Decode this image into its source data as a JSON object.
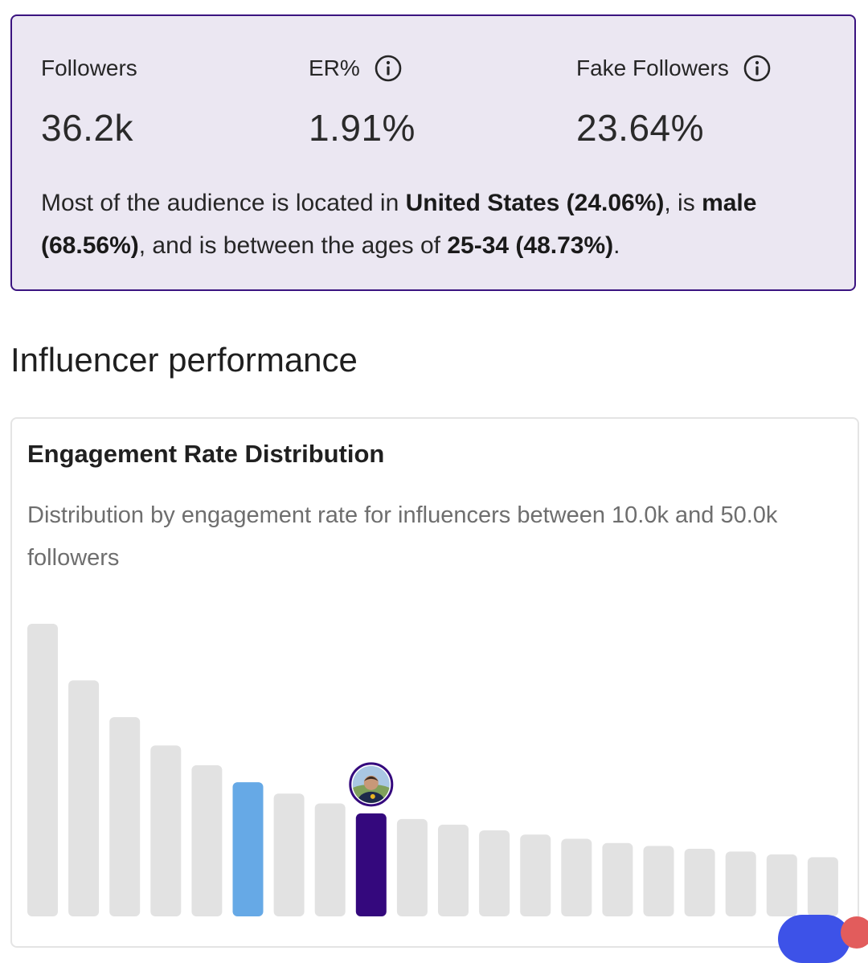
{
  "summary": {
    "followers_label": "Followers",
    "followers_value": "36.2k",
    "er_label": "ER%",
    "er_value": "1.91%",
    "fake_label": "Fake Followers",
    "fake_value": "23.64%",
    "text_1": "Most of the audience is located in ",
    "country": "United States (24.06%)",
    "text_2": ", is ",
    "gender_1": "male",
    "gender_2": "(68.56%)",
    "text_3": ", and is between the ages of ",
    "age": "25-34 (48.73%)",
    "text_4": "."
  },
  "section_title": "Influencer performance",
  "chart": {
    "title": "Engagement Rate Distribution",
    "subtitle": "Distribution by engagement rate for influencers between 10.0k and 50.0k followers"
  },
  "chart_data": {
    "type": "bar",
    "values": [
      100,
      80,
      67,
      57,
      50,
      44,
      40,
      36.5,
      33,
      31,
      29,
      27,
      25.5,
      24,
      22.5,
      21.5,
      20.5,
      19.5,
      18.5,
      17.5
    ],
    "highlight_blue_index": 5,
    "highlight_selected_index": 8,
    "colors": {
      "default": "#e2e2e2",
      "blue": "#66a9e6",
      "selected": "#34087d"
    }
  },
  "colors": {
    "card_bg": "#ebe7f2",
    "card_border": "#3a1380"
  }
}
